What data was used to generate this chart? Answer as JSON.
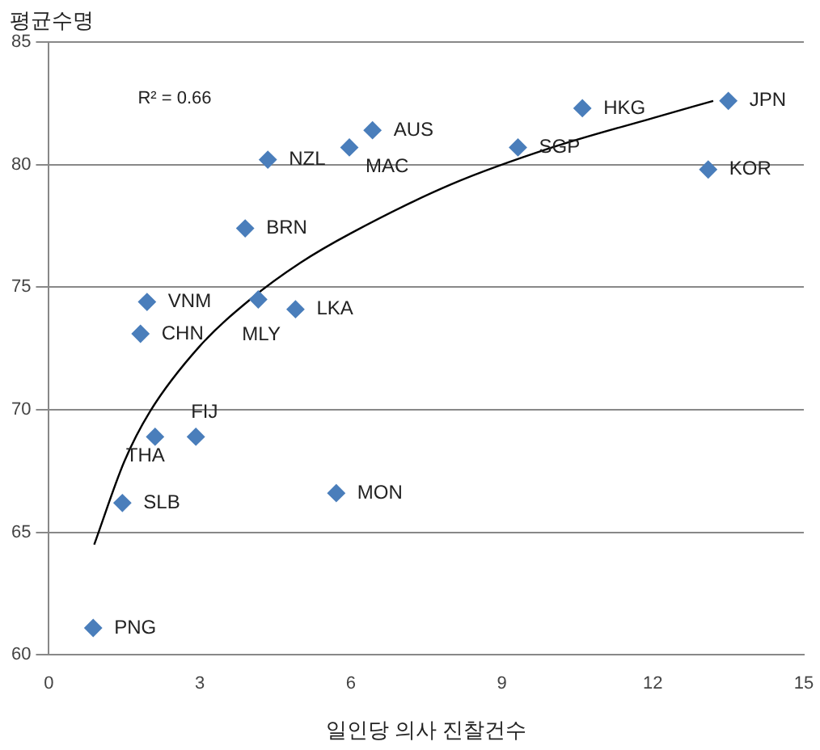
{
  "chart_data": {
    "type": "scatter",
    "xlabel": "일인당 의사 진찰건수",
    "ylabel": "평균수명",
    "x": [
      0.88,
      1.46,
      2.11,
      2.92,
      1.82,
      1.95,
      3.9,
      4.35,
      4.16,
      4.9,
      5.71,
      5.97,
      6.43,
      9.32,
      10.6,
      13.1,
      13.5
    ],
    "series": [
      {
        "color": "#4a7ebb",
        "values": [
          61.1,
          66.2,
          68.9,
          68.9,
          73.1,
          74.4,
          77.4,
          80.2,
          74.5,
          74.1,
          66.6,
          80.7,
          81.4,
          80.7,
          82.3,
          79.8,
          82.6
        ]
      },
      {
        "type": "line",
        "color": "#000000",
        "marker": "none",
        "x": [
          0.9,
          1.5,
          2,
          3,
          4,
          5,
          6,
          8,
          10,
          12,
          13.2
        ],
        "values": [
          64.5,
          67.9,
          69.9,
          72.6,
          74.5,
          76.0,
          77.2,
          79.2,
          80.7,
          81.9,
          82.6
        ]
      }
    ],
    "marker": "diamond",
    "xlim": [
      0,
      15
    ],
    "xticks": [
      0,
      3,
      6,
      9,
      12,
      15
    ],
    "ylim": [
      60,
      85
    ],
    "yticks": [
      60,
      65,
      70,
      75,
      80,
      85
    ],
    "grid": "y",
    "annotations": [
      "R² = 0.66",
      {
        "text": "PNG",
        "x": 0.88,
        "y": 61.1
      },
      {
        "text": "SLB",
        "x": 1.46,
        "y": 66.2
      },
      {
        "text": "THA",
        "x": 2.11,
        "y": 68.9
      },
      {
        "text": "FIJ",
        "x": 2.92,
        "y": 68.9
      },
      {
        "text": "CHN",
        "x": 1.82,
        "y": 73.1
      },
      {
        "text": "VNM",
        "x": 1.95,
        "y": 74.4
      },
      {
        "text": "BRN",
        "x": 3.9,
        "y": 77.4
      },
      {
        "text": "NZL",
        "x": 4.35,
        "y": 80.2
      },
      {
        "text": "MLY",
        "x": 4.16,
        "y": 74.5
      },
      {
        "text": "LKA",
        "x": 4.9,
        "y": 74.1
      },
      {
        "text": "MON",
        "x": 5.71,
        "y": 66.6
      },
      {
        "text": "MAC",
        "x": 5.97,
        "y": 80.7
      },
      {
        "text": "AUS",
        "x": 6.43,
        "y": 81.4
      },
      {
        "text": "SGP",
        "x": 9.32,
        "y": 80.7
      },
      {
        "text": "HKG",
        "x": 10.6,
        "y": 82.3
      },
      {
        "text": "KOR",
        "x": 13.1,
        "y": 79.8
      },
      {
        "text": "JPN",
        "x": 13.5,
        "y": 82.6
      }
    ]
  }
}
